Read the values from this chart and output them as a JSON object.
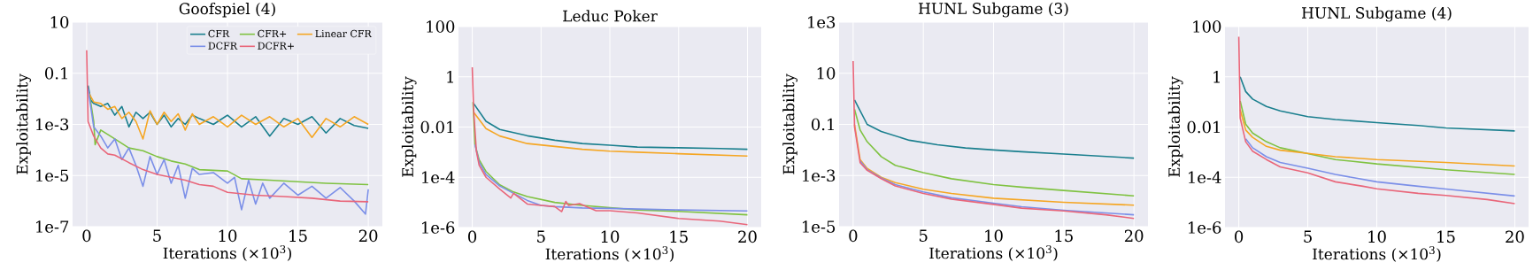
{
  "chart_data": [
    {
      "type": "line",
      "title": "Goofspiel (4)",
      "xlabel": "Iterations (×10$^{3}$)",
      "ylabel": "Exploitability",
      "log": "y",
      "grid": true,
      "legend": "top right",
      "xlim": [
        -1,
        21
      ],
      "ylim": [
        1e-07,
        10
      ],
      "xticks": [
        0,
        5,
        10,
        15,
        20
      ],
      "yticks": [
        {
          "value": 1e-07,
          "label": "1e-7"
        },
        {
          "value": 1e-05,
          "label": "1e-5"
        },
        {
          "value": 0.001,
          "label": "1e-3"
        },
        0.1,
        10
      ],
      "series": [
        {
          "name": "CFR",
          "color": "#1a7f8e",
          "x": [
            0.1,
            0.3,
            0.5,
            1,
            1.5,
            2,
            2.5,
            3,
            3.5,
            4,
            4.5,
            5,
            5.5,
            6,
            6.5,
            7,
            7.5,
            8,
            9,
            10,
            11,
            12,
            13,
            14,
            15,
            16,
            17,
            18,
            19,
            20
          ],
          "values": [
            0.033,
            0.0087,
            0.0066,
            0.005,
            0.0066,
            0.0023,
            0.005,
            0.0008,
            0.003,
            0.0017,
            0.003,
            0.001,
            0.0023,
            0.0008,
            0.0017,
            0.001,
            0.0023,
            0.0017,
            0.001,
            0.0023,
            0.0008,
            0.002,
            0.00035,
            0.0017,
            0.001,
            0.002,
            0.00046,
            0.0017,
            0.0009,
            0.0007
          ]
        },
        {
          "name": "CFR+",
          "color": "#7fc241",
          "x": [
            0.2,
            0.5,
            0.6,
            1,
            2,
            3,
            4,
            5,
            6,
            7,
            8,
            10,
            11,
            13,
            15,
            17,
            20
          ],
          "values": [
            0.015,
            0.0013,
            0.00016,
            0.0006,
            0.00027,
            0.00012,
            9.3e-05,
            5.5e-05,
            3.7e-05,
            2.8e-05,
            1.7e-05,
            1.5e-05,
            7.5e-06,
            6.6e-06,
            5.7e-06,
            5e-06,
            4.4e-06
          ]
        },
        {
          "name": "Linear CFR",
          "color": "#f5a623",
          "x": [
            0.1,
            0.5,
            1,
            1.5,
            2,
            2.5,
            3,
            3.5,
            4,
            4.5,
            5,
            5.5,
            6,
            6.5,
            7,
            7.5,
            8,
            9,
            10,
            11,
            12,
            13,
            14,
            15,
            16,
            17,
            18,
            19,
            20
          ],
          "values": [
            0.019,
            0.0075,
            0.0066,
            0.0039,
            0.005,
            0.0017,
            0.003,
            0.0013,
            0.00027,
            0.0034,
            0.001,
            0.003,
            0.0013,
            0.0026,
            0.0006,
            0.0026,
            0.001,
            0.002,
            0.0008,
            0.0023,
            0.001,
            0.002,
            0.0008,
            0.0017,
            0.00031,
            0.0017,
            0.0008,
            0.002,
            0.001
          ]
        },
        {
          "name": "DCFR",
          "color": "#7b8fe8",
          "x": [
            0.1,
            0.5,
            1,
            1.5,
            2,
            2.5,
            3,
            3.5,
            4,
            4.5,
            5,
            5.5,
            6,
            6.5,
            7,
            7.5,
            8,
            9,
            10,
            10.5,
            11,
            11.5,
            12,
            12.5,
            13,
            14,
            15,
            16,
            17,
            18,
            19,
            19.8,
            20
          ],
          "values": [
            0.025,
            0.0008,
            0.00035,
            0.00012,
            0.00027,
            4.2e-05,
            0.00012,
            2.5e-05,
            3.8e-06,
            5.5e-05,
            1.1e-05,
            4.2e-05,
            5e-06,
            2.5e-05,
            1.3e-06,
            1.9e-05,
            1.1e-05,
            1.3e-05,
            5e-06,
            8.5e-06,
            4.6e-07,
            6.6e-06,
            7.7e-07,
            5e-06,
            1.3e-06,
            5e-06,
            1.7e-06,
            3.8e-06,
            1.3e-06,
            3.4e-06,
            1e-06,
            3.1e-07,
            2.9e-06
          ]
        },
        {
          "name": "DCFR+",
          "color": "#e9667a",
          "x": [
            0,
            0.1,
            0.5,
            1,
            1.5,
            2,
            3,
            4,
            5,
            7,
            8,
            9,
            10,
            12,
            14,
            16,
            18,
            20
          ],
          "values": [
            0.8,
            0.0013,
            0.00035,
            0.00012,
            7e-05,
            6.3e-05,
            3.2e-05,
            1.7e-05,
            1.1e-05,
            6.6e-06,
            4.4e-06,
            3.8e-06,
            2.2e-06,
            1.7e-06,
            1.5e-06,
            1.3e-06,
            1e-06,
            9.4e-07
          ]
        }
      ]
    },
    {
      "type": "line",
      "title": "Leduc Poker",
      "xlabel": "Iterations (×10$^{3}$)",
      "ylabel": "Exploitability",
      "log": "y",
      "grid": true,
      "xlim": [
        -1,
        21
      ],
      "ylim": [
        1e-06,
        100
      ],
      "xticks": [
        0,
        5,
        10,
        15,
        20
      ],
      "yticks": [
        {
          "value": 1e-06,
          "label": "1e-6"
        },
        {
          "value": 0.0001,
          "label": "1e-4"
        },
        0.01,
        1,
        100
      ],
      "series": [
        {
          "color": "#1a7f8e",
          "x": [
            0.1,
            1,
            2,
            4,
            6,
            8,
            10,
            12,
            15,
            18,
            20
          ],
          "values": [
            0.087,
            0.017,
            0.008,
            0.0045,
            0.003,
            0.0022,
            0.0019,
            0.0016,
            0.0015,
            0.0014,
            0.0013
          ]
        },
        {
          "color": "#7fc241",
          "x": [
            0.05,
            0.2,
            0.5,
            1,
            2,
            3,
            4,
            6,
            8,
            10,
            12,
            15,
            20
          ],
          "values": [
            0.1,
            0.002,
            0.0005,
            0.00017,
            5e-05,
            2.6e-05,
            1.7e-05,
            1e-05,
            7.6e-06,
            null,
            5e-06,
            4.4e-06,
            3.2e-06
          ]
        },
        {
          "color": "#f5a623",
          "x": [
            0.1,
            1,
            2,
            4,
            6,
            8,
            10,
            12,
            15,
            20
          ],
          "values": [
            0.039,
            0.0087,
            0.0044,
            0.0022,
            0.0017,
            0.0013,
            0.0011,
            0.001,
            0.00087,
            0.0007
          ]
        },
        {
          "color": "#7b8fe8",
          "x": [
            0.2,
            0.5,
            1,
            2,
            3,
            4,
            5,
            6,
            8,
            10,
            15,
            20
          ],
          "values": [
            0.002,
            0.0004,
            0.00013,
            4.5e-05,
            2.3e-05,
            1.2e-05,
            7.6e-06,
            6.8e-06,
            6e-06,
            5.8e-06,
            5e-06,
            4.6e-06
          ]
        },
        {
          "color": "#e9667a",
          "x": [
            0,
            0.1,
            0.3,
            0.5,
            1,
            2,
            2.8,
            3,
            4,
            5,
            6,
            6.5,
            6.8,
            7,
            7.8,
            9,
            10,
            12,
            15,
            18,
            20
          ],
          "values": [
            2.4,
            0.05,
            0.0011,
            0.0003,
            0.0001,
            3.4e-05,
            1.5e-05,
            2.3e-05,
            8.6e-06,
            7.6e-06,
            6.8e-06,
            4.3e-06,
            1.1e-05,
            7.6e-06,
            9e-06,
            4.7e-06,
            4.7e-06,
            3.8e-06,
            2.3e-06,
            1.8e-06,
            1.3e-06
          ]
        }
      ]
    },
    {
      "type": "line",
      "title": "HUNL Subgame (3)",
      "xlabel": "Iterations (×10$^{3}$)",
      "ylabel": "Exploitability",
      "log": "y",
      "grid": true,
      "xlim": [
        -1,
        21
      ],
      "ylim": [
        1e-05,
        1000
      ],
      "xticks": [
        0,
        5,
        10,
        15,
        20
      ],
      "yticks": [
        {
          "value": 1e-05,
          "label": "1e-5"
        },
        {
          "value": 0.001,
          "label": "1e-3"
        },
        0.1,
        10,
        {
          "value": 1000,
          "label": "1e3"
        }
      ],
      "series": [
        {
          "color": "#1a7f8e",
          "x": [
            0.1,
            1,
            2,
            4,
            6,
            8,
            10,
            12,
            15,
            20
          ],
          "values": [
            0.9,
            0.1,
            0.053,
            0.024,
            0.016,
            0.012,
            0.01,
            0.0085,
            0.0069,
            0.0048
          ]
        },
        {
          "color": "#7fc241",
          "x": [
            0.1,
            0.5,
            1,
            2,
            3,
            5,
            7,
            10,
            12,
            15,
            20
          ],
          "values": [
            0.39,
            0.06,
            0.021,
            0.0055,
            0.0025,
            0.0013,
            0.00075,
            0.00044,
            0.00035,
            0.00026,
            0.00016
          ]
        },
        {
          "color": "#f5a623",
          "x": [
            0.1,
            0.5,
            1,
            2,
            3,
            5,
            7,
            10,
            15,
            20
          ],
          "values": [
            0.1,
            0.0042,
            0.0019,
            0.00085,
            0.00053,
            0.00029,
            0.0002,
            0.00013,
            9e-05,
            6.9e-05
          ]
        },
        {
          "color": "#7b8fe8",
          "x": [
            0.5,
            1,
            2,
            3,
            5,
            7,
            10,
            12,
            15,
            20
          ],
          "values": [
            0.0037,
            0.0017,
            0.0008,
            0.00044,
            0.00023,
            0.000135,
            8.3e-05,
            6e-05,
            4.4e-05,
            2.9e-05
          ]
        },
        {
          "color": "#e9667a",
          "x": [
            0,
            0.1,
            0.5,
            1,
            2,
            3,
            5,
            7,
            10,
            12,
            15,
            18,
            20
          ],
          "values": [
            30,
            0.08,
            0.0032,
            0.0016,
            0.00076,
            0.00039,
            0.0002,
            0.00012,
            7.4e-05,
            5.3e-05,
            4.1e-05,
            2.9e-05,
            2.1e-05
          ]
        }
      ]
    },
    {
      "type": "line",
      "title": "HUNL Subgame (4)",
      "xlabel": "Iterations (×10$^{3}$)",
      "ylabel": "Exploitability",
      "log": "y",
      "grid": true,
      "xlim": [
        -1,
        21
      ],
      "ylim": [
        1e-06,
        100
      ],
      "xticks": [
        0,
        5,
        10,
        15,
        20
      ],
      "yticks": [
        {
          "value": 1e-06,
          "label": "1e-6"
        },
        {
          "value": 0.0001,
          "label": "1e-4"
        },
        0.01,
        1,
        100
      ],
      "series": [
        {
          "color": "#1a7f8e",
          "x": [
            0.1,
            0.5,
            1,
            2,
            3,
            5,
            7,
            10,
            13,
            15,
            20
          ],
          "values": [
            1,
            0.26,
            0.13,
            0.066,
            0.044,
            0.026,
            0.02,
            0.015,
            0.0115,
            0.0092,
            0.007
          ]
        },
        {
          "color": "#7fc241",
          "x": [
            0.1,
            0.5,
            1,
            2,
            3,
            5,
            7,
            10,
            15,
            20
          ],
          "values": [
            0.11,
            0.013,
            0.0058,
            0.0026,
            0.0015,
            0.00088,
            0.00051,
            0.00034,
            0.0002,
            0.00013
          ]
        },
        {
          "color": "#f5a623",
          "x": [
            0.1,
            0.5,
            1,
            2,
            3,
            5,
            7,
            10,
            15,
            20
          ],
          "values": [
            0.05,
            0.0076,
            0.0039,
            0.0017,
            0.0012,
            0.0009,
            0.00066,
            0.00051,
            0.00039,
            0.00028
          ]
        },
        {
          "color": "#7b8fe8",
          "x": [
            0.5,
            1,
            2,
            3,
            5,
            7,
            10,
            13,
            15,
            20
          ],
          "values": [
            0.0034,
            0.0015,
            0.00066,
            0.00039,
            0.00023,
            0.00013,
            6.6e-05,
            4.4e-05,
            3.4e-05,
            1.8e-05
          ]
        },
        {
          "color": "#e9667a",
          "x": [
            0,
            0.1,
            0.5,
            1,
            2,
            3,
            5,
            7,
            9,
            10,
            13,
            15,
            18,
            20
          ],
          "values": [
            39,
            0.023,
            0.0026,
            0.0011,
            0.00051,
            0.00026,
            0.00015,
            6.6e-05,
            4.4e-05,
            3.5e-05,
            2.3e-05,
            1.9e-05,
            1.3e-05,
            9e-06
          ]
        }
      ]
    }
  ]
}
